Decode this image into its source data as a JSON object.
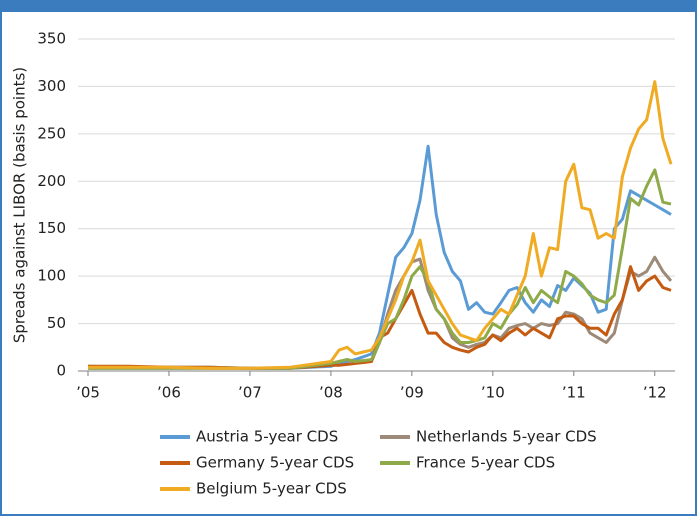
{
  "chart_data": {
    "type": "line",
    "y_label": "Spreads against LIBOR (basis points)",
    "x": [
      2005,
      2005.5,
      2006,
      2006.5,
      2007,
      2007.5,
      2008.0,
      2008.1,
      2008.2,
      2008.3,
      2008.4,
      2008.5,
      2008.6,
      2008.7,
      2008.8,
      2008.9,
      2009.0,
      2009.1,
      2009.2,
      2009.3,
      2009.4,
      2009.5,
      2009.6,
      2009.7,
      2009.8,
      2009.9,
      2010.0,
      2010.1,
      2010.2,
      2010.3,
      2010.4,
      2010.5,
      2010.6,
      2010.7,
      2010.8,
      2010.9,
      2011.0,
      2011.1,
      2011.2,
      2011.3,
      2011.4,
      2011.5,
      2011.6,
      2011.7,
      2011.8,
      2011.9,
      2012.0,
      2012.1,
      2012.2
    ],
    "series": [
      {
        "name": "Austria 5-year CDS",
        "color": "#5b9bd5",
        "values": [
          5,
          4,
          4,
          4,
          3,
          3,
          5,
          8,
          10,
          12,
          15,
          18,
          40,
          80,
          120,
          130,
          145,
          180,
          237,
          165,
          125,
          105,
          95,
          65,
          72,
          62,
          60,
          72,
          85,
          88,
          72,
          62,
          75,
          68,
          90,
          85,
          98,
          90,
          82,
          62,
          65,
          150,
          160,
          190,
          185,
          180,
          175,
          170,
          165
        ]
      },
      {
        "name": "Netherlands 5-year CDS",
        "color": "#9e8a78",
        "values": [
          3,
          3,
          3,
          3,
          3,
          3,
          8,
          10,
          12,
          10,
          10,
          10,
          30,
          60,
          85,
          100,
          115,
          118,
          85,
          65,
          55,
          35,
          28,
          25,
          28,
          30,
          38,
          35,
          45,
          48,
          50,
          45,
          50,
          48,
          50,
          62,
          60,
          55,
          40,
          35,
          30,
          40,
          75,
          105,
          100,
          105,
          120,
          105,
          95
        ]
      },
      {
        "name": "Germany 5-year CDS",
        "color": "#c55a11",
        "values": [
          5,
          5,
          4,
          4,
          3,
          3,
          6,
          6,
          7,
          8,
          9,
          10,
          35,
          40,
          55,
          70,
          85,
          60,
          40,
          40,
          30,
          25,
          22,
          20,
          25,
          28,
          38,
          32,
          40,
          45,
          38,
          45,
          40,
          35,
          55,
          58,
          58,
          50,
          45,
          45,
          38,
          60,
          75,
          110,
          85,
          95,
          100,
          88,
          85
        ]
      },
      {
        "name": "France 5-year CDS",
        "color": "#8faa48",
        "values": [
          3,
          3,
          3,
          3,
          3,
          3,
          8,
          10,
          12,
          10,
          11,
          12,
          30,
          50,
          55,
          75,
          100,
          110,
          95,
          65,
          55,
          40,
          30,
          30,
          32,
          35,
          50,
          45,
          60,
          70,
          88,
          72,
          85,
          78,
          72,
          105,
          100,
          92,
          80,
          75,
          72,
          80,
          130,
          182,
          175,
          195,
          212,
          178,
          176
        ]
      },
      {
        "name": "Belgium 5-year CDS",
        "color": "#f0ab24",
        "values": [
          4,
          4,
          4,
          3,
          3,
          4,
          10,
          22,
          25,
          18,
          20,
          22,
          35,
          55,
          75,
          100,
          115,
          138,
          95,
          80,
          65,
          50,
          38,
          35,
          32,
          45,
          55,
          65,
          60,
          80,
          100,
          145,
          100,
          130,
          128,
          200,
          218,
          172,
          170,
          140,
          145,
          140,
          205,
          235,
          255,
          265,
          305,
          245,
          218
        ]
      }
    ],
    "xlim": [
      2005,
      2012.25
    ],
    "xticks": [
      {
        "value": 2005,
        "label": "’05"
      },
      {
        "value": 2006,
        "label": "’06"
      },
      {
        "value": 2007,
        "label": "’07"
      },
      {
        "value": 2008,
        "label": "’08"
      },
      {
        "value": 2009,
        "label": "’09"
      },
      {
        "value": 2010,
        "label": "’10"
      },
      {
        "value": 2011,
        "label": "’11"
      },
      {
        "value": 2012,
        "label": "’12"
      }
    ],
    "ylim": [
      0,
      350
    ],
    "yticks": [
      0,
      50,
      100,
      150,
      200,
      250,
      300,
      350
    ],
    "grid": true
  }
}
